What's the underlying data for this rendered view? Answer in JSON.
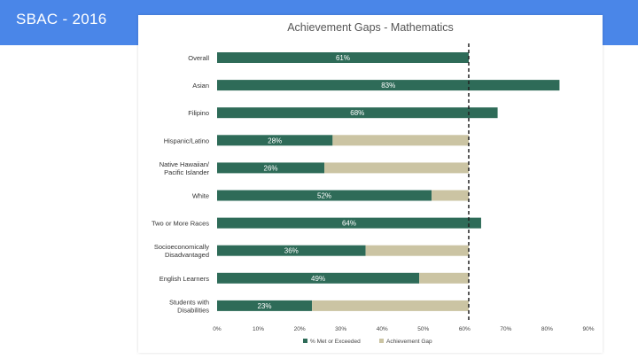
{
  "slide": {
    "title": "SBAC - 2016"
  },
  "colors": {
    "header": "#4a86e8",
    "met": "#2e6b58",
    "gap": "#cbc4a3",
    "target_line": "#222222"
  },
  "chart_data": {
    "type": "bar",
    "orientation": "horizontal",
    "stacked": true,
    "title": "Achievement Gaps - Mathematics",
    "categories": [
      "Overall",
      "Asian",
      "Filipino",
      "Hispanic/Latino",
      "Native Hawaiian/ Pacific Islander",
      "White",
      "Two or More Races",
      "Socioeconomically Disadvantaged",
      "English Learners",
      "Students with Disabilities"
    ],
    "series": [
      {
        "name": "% Met or Exceeded",
        "values": [
          61,
          83,
          68,
          28,
          26,
          52,
          64,
          36,
          49,
          23
        ]
      },
      {
        "name": "Achievement Gap",
        "values": [
          0,
          0,
          0,
          33,
          35,
          9,
          0,
          25,
          12,
          38
        ]
      }
    ],
    "value_labels": [
      "61%",
      "83%",
      "68%",
      "28%",
      "26%",
      "52%",
      "64%",
      "36%",
      "49%",
      "23%"
    ],
    "target_line": 61,
    "xlim": [
      0,
      90
    ],
    "x_ticks": [
      "0%",
      "10%",
      "20%",
      "30%",
      "40%",
      "50%",
      "60%",
      "70%",
      "80%",
      "90%"
    ],
    "grid": false,
    "legend_position": "bottom"
  }
}
